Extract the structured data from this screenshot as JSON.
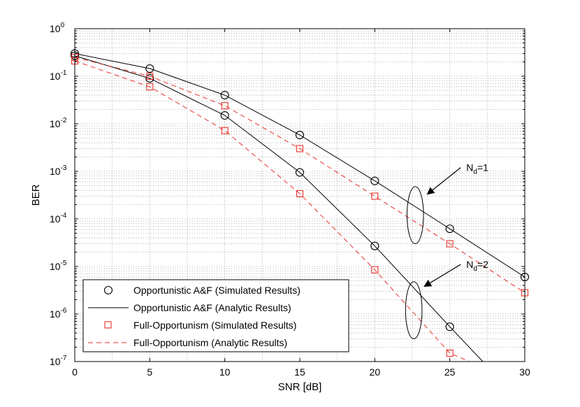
{
  "chart_data": {
    "type": "line",
    "title": "",
    "xlabel": "SNR [dB]",
    "ylabel": "BER",
    "xlim": [
      0,
      30
    ],
    "ylim": [
      1e-07,
      1
    ],
    "yscale": "log",
    "grid": true,
    "x_ticks": [
      0,
      5,
      10,
      15,
      20,
      25,
      30
    ],
    "x_tick_labels": [
      "0",
      "5",
      "10",
      "15",
      "20",
      "25",
      "30"
    ],
    "y_ticks": [
      {
        "value": 1,
        "base": "10",
        "exp": "0"
      },
      {
        "value": 0.1,
        "base": "10",
        "exp": "-1"
      },
      {
        "value": 0.01,
        "base": "10",
        "exp": "-2"
      },
      {
        "value": 0.001,
        "base": "10",
        "exp": "-3"
      },
      {
        "value": 0.0001,
        "base": "10",
        "exp": "-4"
      },
      {
        "value": 1e-05,
        "base": "10",
        "exp": "-5"
      },
      {
        "value": 1e-06,
        "base": "10",
        "exp": "-6"
      },
      {
        "value": 1e-07,
        "base": "10",
        "exp": "-7"
      }
    ],
    "legend_position": "bottom-left",
    "legend": [
      {
        "label": "Opportunistic A&F (Simulated Results)",
        "style": "circle-marker",
        "color": "#000000"
      },
      {
        "label": "Opportunistic A&F (Analytic Results)",
        "style": "solid-line",
        "color": "#000000"
      },
      {
        "label": "Full-Opportunism (Simulated Results)",
        "style": "square-marker",
        "color": "#e8322c"
      },
      {
        "label": "Full-Opportunism (Analytic Results)",
        "style": "dashed-line",
        "color": "#e8322c"
      }
    ],
    "series": [
      {
        "name": "Opportunistic A&F Analytic Nd=1",
        "style": "solid",
        "color": "#000000",
        "x": [
          0,
          5,
          10,
          15,
          20,
          25,
          30
        ],
        "y": [
          0.3,
          0.145,
          0.04,
          0.0058,
          0.00063,
          6.2e-05,
          6e-06
        ]
      },
      {
        "name": "Opportunistic A&F Analytic Nd=2",
        "style": "solid",
        "color": "#000000",
        "x": [
          0,
          5,
          10,
          15,
          20,
          25,
          27.2
        ],
        "y": [
          0.27,
          0.09,
          0.015,
          0.00095,
          2.7e-05,
          5.4e-07,
          1e-07
        ]
      },
      {
        "name": "Full-Opportunism Analytic Nd=1",
        "style": "dashed",
        "color": "#e8322c",
        "x": [
          0,
          5,
          10,
          15,
          20,
          25,
          30
        ],
        "y": [
          0.25,
          0.1,
          0.024,
          0.003,
          0.0003,
          3e-05,
          2.8e-06
        ]
      },
      {
        "name": "Full-Opportunism Analytic Nd=2",
        "style": "dashed",
        "color": "#e8322c",
        "x": [
          0,
          5,
          10,
          15,
          20,
          25,
          26.3
        ],
        "y": [
          0.21,
          0.06,
          0.0072,
          0.00034,
          8.5e-06,
          1.5e-07,
          1e-07
        ]
      },
      {
        "name": "Opportunistic A&F Simulated Nd=1",
        "marker": "circle",
        "color": "#000000",
        "x": [
          0,
          5,
          10,
          15,
          20,
          25,
          30
        ],
        "y": [
          0.3,
          0.145,
          0.04,
          0.0058,
          0.00063,
          6.2e-05,
          6e-06
        ]
      },
      {
        "name": "Opportunistic A&F Simulated Nd=2",
        "marker": "circle",
        "color": "#000000",
        "x": [
          0,
          5,
          10,
          15,
          20,
          25
        ],
        "y": [
          0.27,
          0.09,
          0.015,
          0.00095,
          2.7e-05,
          5.4e-07
        ]
      },
      {
        "name": "Full-Opportunism Simulated Nd=1",
        "marker": "square",
        "color": "#e8322c",
        "x": [
          0,
          5,
          10,
          15,
          20,
          25,
          30
        ],
        "y": [
          0.25,
          0.1,
          0.024,
          0.003,
          0.0003,
          3e-05,
          2.8e-06
        ]
      },
      {
        "name": "Full-Opportunism Simulated Nd=2",
        "marker": "square",
        "color": "#e8322c",
        "x": [
          0,
          5,
          10,
          15,
          20,
          25
        ],
        "y": [
          0.21,
          0.06,
          0.0072,
          0.00034,
          8.5e-06,
          1.5e-07
        ]
      }
    ],
    "annotations": [
      {
        "id": "nd1",
        "label_base": "N",
        "label_sub": "d",
        "label_rest": "=1",
        "ellipse_center": [
          22.7,
          0.00012
        ],
        "ellipse_rx_data": 0.55,
        "ellipse_decades": 0.6,
        "arrow_to": [
          23.5,
          0.00033
        ],
        "text_at": [
          26.1,
          0.0012
        ]
      },
      {
        "id": "nd2",
        "label_base": "N",
        "label_sub": "d",
        "label_rest": "=2",
        "ellipse_center": [
          22.6,
          1.2e-06
        ],
        "ellipse_rx_data": 0.55,
        "ellipse_decades": 0.6,
        "arrow_to": [
          23.3,
          3.8e-06
        ],
        "text_at": [
          26.1,
          1.1e-05
        ]
      }
    ]
  }
}
